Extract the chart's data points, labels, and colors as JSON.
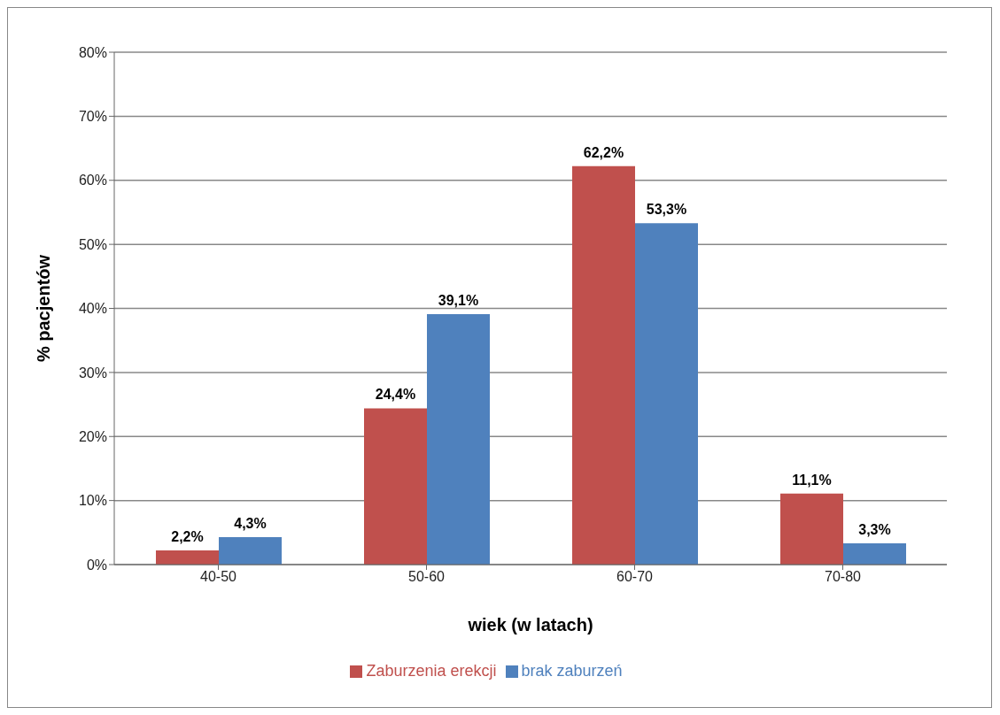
{
  "chart_data": {
    "type": "bar",
    "xlabel": "wiek (w latach)",
    "ylabel": "% pacjentów",
    "categories": [
      "40-50",
      "50-60",
      "60-70",
      "70-80"
    ],
    "series": [
      {
        "name": "Zaburzenia erekcji",
        "color": "#c0504d",
        "values": [
          2.2,
          24.4,
          62.2,
          11.1
        ],
        "value_labels": [
          "2,2%",
          "24,4%",
          "62,2%",
          "11,1%"
        ]
      },
      {
        "name": "brak zaburzeń",
        "color": "#4f81bd",
        "values": [
          4.3,
          39.1,
          53.3,
          3.3
        ],
        "value_labels": [
          "4,3%",
          "39,1%",
          "53,3%",
          "3,3%"
        ]
      }
    ],
    "ylim": [
      0,
      80
    ],
    "yticks": [
      {
        "value": 0,
        "label": "0%"
      },
      {
        "value": 10,
        "label": "10%"
      },
      {
        "value": 20,
        "label": "20%"
      },
      {
        "value": 30,
        "label": "30%"
      },
      {
        "value": 40,
        "label": "40%"
      },
      {
        "value": 50,
        "label": "50%"
      },
      {
        "value": 60,
        "label": "60%"
      },
      {
        "value": 70,
        "label": "70%"
      },
      {
        "value": 80,
        "label": "80%"
      }
    ],
    "grid": "y",
    "legend": "bottom"
  }
}
